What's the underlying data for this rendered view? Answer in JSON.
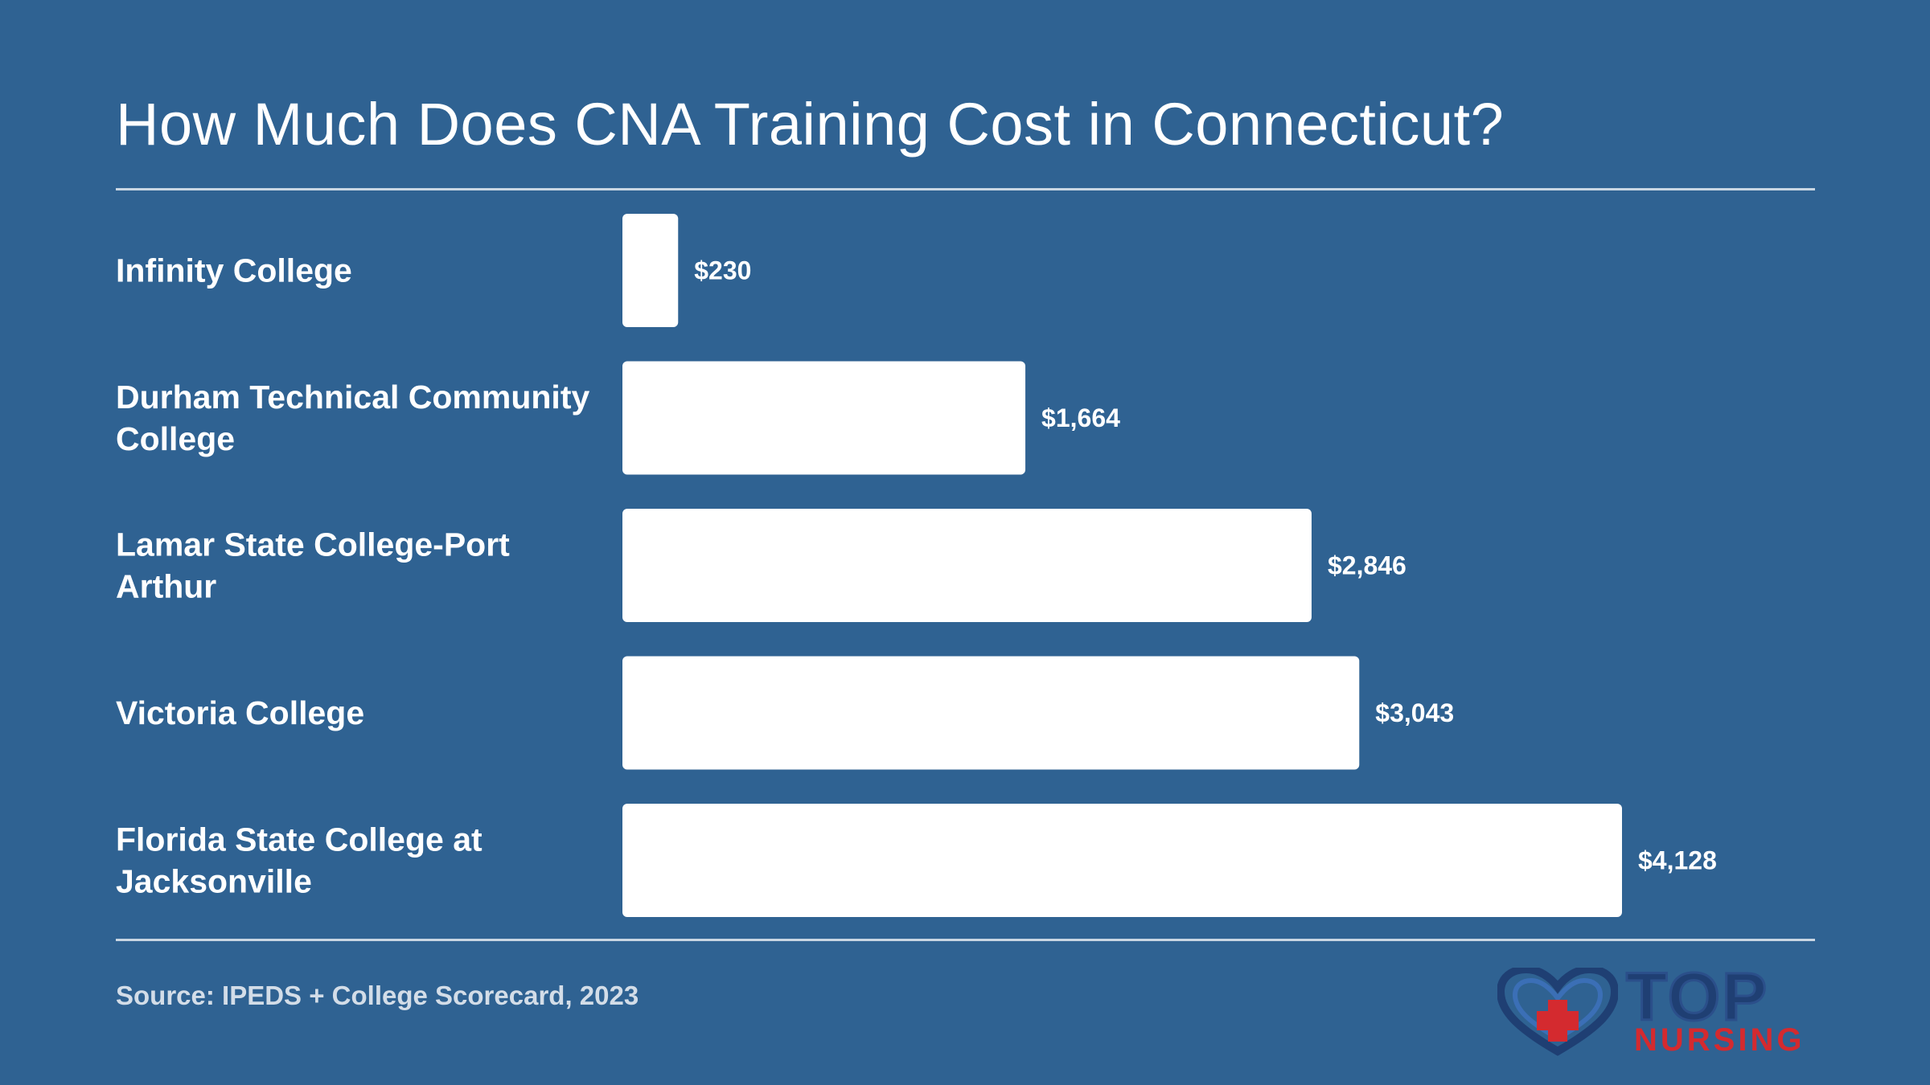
{
  "title": "How Much Does CNA Training Cost in Connecticut?",
  "source": "Source: IPEDS + College Scorecard, 2023",
  "logo": {
    "top_text": "TOP",
    "bottom_text": "NURSING",
    "icon": "heart-plus-icon"
  },
  "colors": {
    "background": "#2f6292",
    "bar": "#ffffff",
    "logo_navy": "#1f3f73",
    "logo_red": "#d42a2f"
  },
  "chart_data": {
    "type": "bar",
    "orientation": "horizontal",
    "categories": [
      "Infinity College",
      "Durham Technical Community College",
      "Lamar State College-Port Arthur",
      "Victoria College",
      "Florida State College at Jacksonville"
    ],
    "values": [
      230,
      1664,
      2846,
      3043,
      4128
    ],
    "value_labels": [
      "$230",
      "$1,664",
      "$2,846",
      "$3,043",
      "$4,128"
    ],
    "xlim": [
      0,
      4128
    ],
    "grid": false,
    "legend": "none"
  }
}
